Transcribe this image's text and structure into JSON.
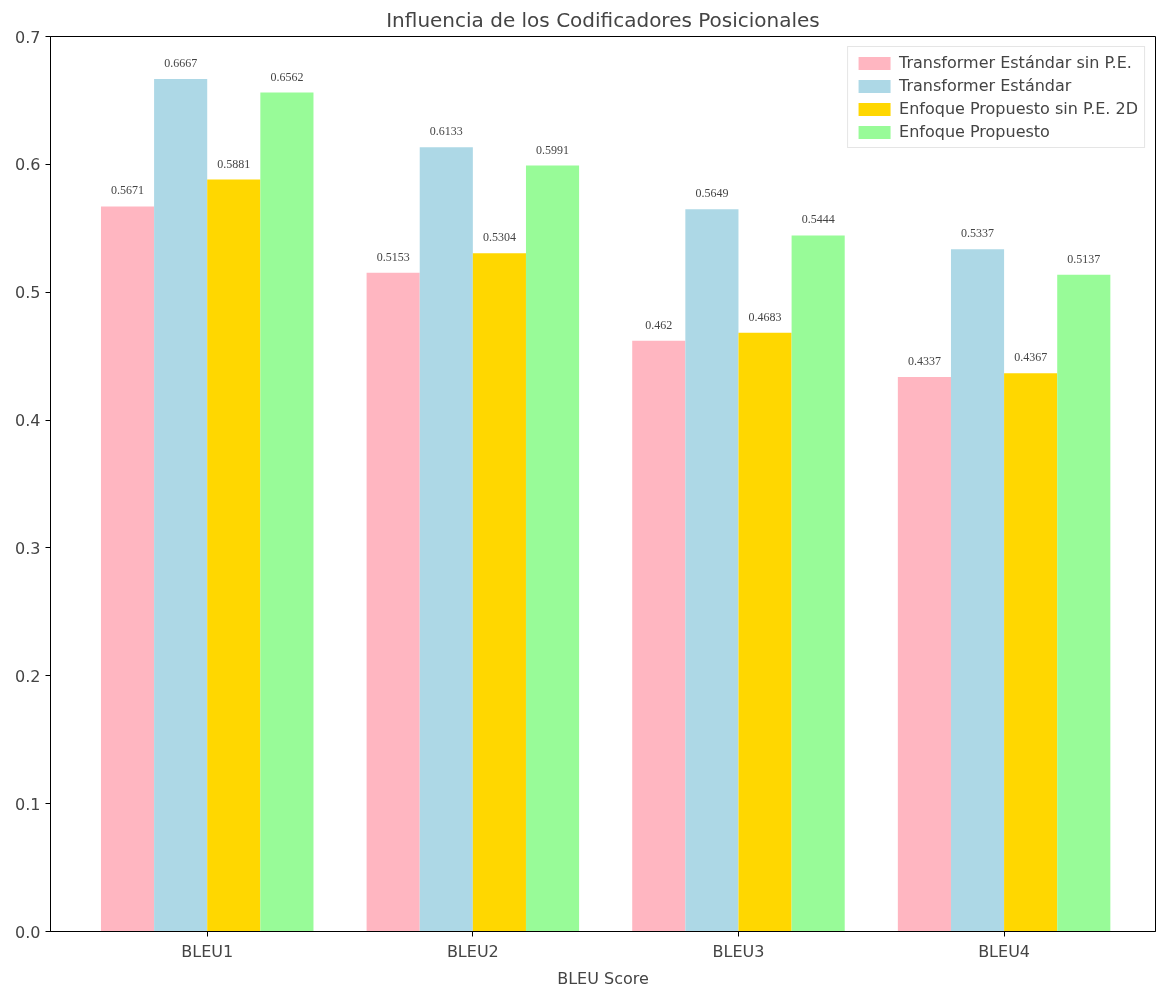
{
  "chart_data": {
    "type": "bar",
    "title": "Influencia de los Codificadores Posicionales",
    "xlabel": "BLEU Score",
    "categories": [
      "BLEU1",
      "BLEU2",
      "BLEU3",
      "BLEU4"
    ],
    "series": [
      {
        "name": "Transformer Estándar sin P.E.",
        "color": "#ffb6c1",
        "values": [
          0.5671,
          0.5153,
          0.462,
          0.4337
        ]
      },
      {
        "name": "Transformer Estándar",
        "color": "#add8e6",
        "values": [
          0.6667,
          0.6133,
          0.5649,
          0.5337
        ]
      },
      {
        "name": "Enfoque Propuesto sin P.E. 2D",
        "color": "#ffd700",
        "values": [
          0.5881,
          0.5304,
          0.4683,
          0.4367
        ]
      },
      {
        "name": "Enfoque Propuesto",
        "color": "#98fb98",
        "values": [
          0.6562,
          0.5991,
          0.5444,
          0.5137
        ]
      }
    ],
    "ylim": [
      0,
      0.7
    ],
    "yticks": [
      {
        "value": 0,
        "label": "0.0"
      },
      {
        "value": 0.1,
        "label": "0.1"
      },
      {
        "value": 0.2,
        "label": "0.2"
      },
      {
        "value": 0.3,
        "label": "0.3"
      },
      {
        "value": 0.4,
        "label": "0.4"
      },
      {
        "value": 0.5,
        "label": "0.5"
      },
      {
        "value": 0.6,
        "label": "0.6"
      },
      {
        "value": 0.7,
        "label": "0.7"
      }
    ],
    "data_labels": true,
    "legend": "top right",
    "grid": false
  }
}
